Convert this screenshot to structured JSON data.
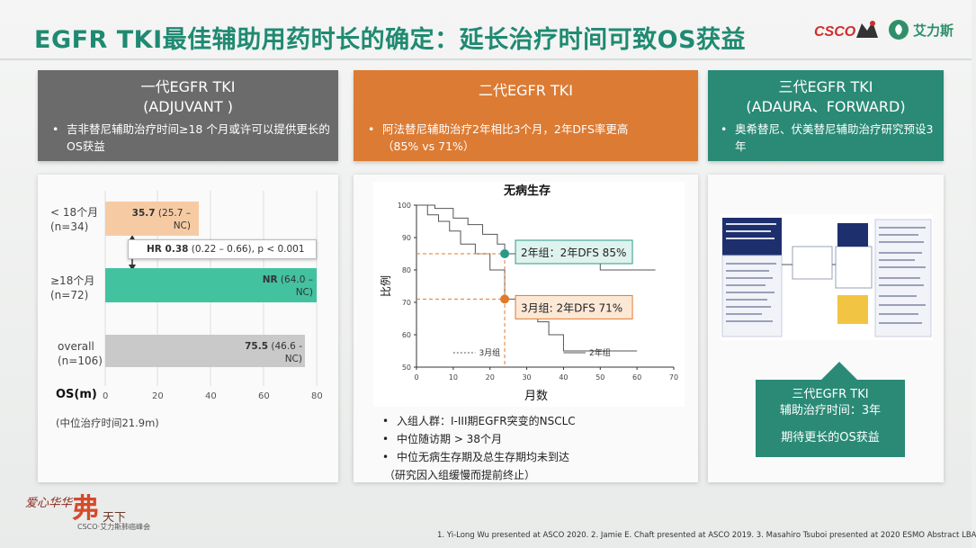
{
  "header": {
    "title": "EGFR TKI最佳辅助用药时长的确定：延长治疗时间可致OS获益",
    "logo_csco": "CSCO",
    "logo_aili": "艾力斯"
  },
  "cards": {
    "first_gen": {
      "title_line1": "一代EGFR TKI",
      "title_line2": "(ADJUVANT )",
      "bullet": "吉非替尼辅助治疗时间≥18 个月或许可以提供更长的OS获益"
    },
    "second_gen": {
      "title_line1": "二代EGFR TKI",
      "bullet": "阿法替尼辅助治疗2年相比3个月，2年DFS率更高（85% vs 71%）"
    },
    "third_gen": {
      "title_line1": "三代EGFR TKI",
      "title_line2": "(ADAURA、FORWARD)",
      "bullet": "奥希替尼、伏美替尼辅助治疗研究预设3年"
    }
  },
  "os_chart": {
    "rows": [
      {
        "label_line1": "< 18个月",
        "label_line2": "(n=34)",
        "value_bold": "35.7",
        "value_rest": " (25.7 –",
        "value_line2": "NC)",
        "color": "#f6cba4"
      },
      {
        "label_line1": "≥18个月",
        "label_line2": "(n=72)",
        "value_bold": "NR",
        "value_rest": " (64.0 –",
        "value_line2": "NC)",
        "color": "#43c2a0"
      },
      {
        "label_line1": "overall",
        "label_line2": "(n=106)",
        "value_bold": "75.5",
        "value_rest": " (46.6 -",
        "value_line2": "NC)",
        "color": "#c9c9c9"
      }
    ],
    "hr_bold": "HR 0.38",
    "hr_rest": " (0.22 – 0.66), p < 0.001",
    "axis_title": "OS(m)",
    "ticks": [
      "0",
      "20",
      "40",
      "60",
      "80"
    ],
    "note": "(中位治疗时间21.9m)"
  },
  "chart_data": {
    "type": "line",
    "title": "无病生存",
    "xlabel": "月数",
    "ylabel": "比例",
    "xlim": [
      0,
      70
    ],
    "ylim": [
      50,
      100
    ],
    "xticks": [
      "0",
      "10",
      "20",
      "30",
      "40",
      "50",
      "60",
      "70"
    ],
    "yticks": [
      "50",
      "60",
      "70",
      "80",
      "90",
      "100"
    ],
    "series": [
      {
        "name": "3月组",
        "x": [
          0,
          3,
          6,
          9,
          12,
          16,
          20,
          24,
          27,
          30,
          33,
          36,
          40,
          45,
          52,
          60
        ],
        "y": [
          100,
          97,
          95,
          92,
          88,
          85,
          80,
          71,
          70,
          68,
          64,
          60,
          55,
          55,
          55,
          55
        ]
      },
      {
        "name": "2年组",
        "x": [
          0,
          5,
          10,
          14,
          18,
          22,
          24,
          30,
          40,
          50,
          60,
          65
        ],
        "y": [
          100,
          99,
          96,
          94,
          91,
          88,
          85,
          83,
          82,
          80,
          80,
          80
        ]
      }
    ],
    "annotations": [
      "2年组：2年DFS 85%",
      "3月组: 2年DFS 71%"
    ]
  },
  "dfs_bullets": [
    "入组人群：I-III期EGFR突变的NSCLC",
    "中位随访期 > 38个月",
    "中位无病生存期及总生存期均未到达"
  ],
  "dfs_note": "（研究因入组缓慢而提前终止）",
  "study_flow": {
    "box1": "Patients with completely resected stage I-IIIA NSCLC with an EGFR mutation",
    "box2": "Stratification by: stage, EGFRm, race",
    "box3": "Randomization 1:1 (N=682)",
    "box4": "Osimertinib 80 mg once daily",
    "box5": "Placebo",
    "box6": "Planned treatment duration: 3 years"
  },
  "callout": {
    "line1": "三代EGFR TKI",
    "line2": "辅助治疗时间：3年",
    "line3": "期待更长的OS获益"
  },
  "footer": {
    "references": "1. Yi-Long Wu presented at ASCO 2020. 2. Jamie E. Chaft presented at ASCO 2019. 3. Masahiro Tsuboi presented at 2020 ESMO Abstract LBA",
    "event_a": "爱心华华",
    "event_b": "弗",
    "event_c": "天下",
    "event_sub": "CSCO·艾力斯肺癌峰会"
  }
}
